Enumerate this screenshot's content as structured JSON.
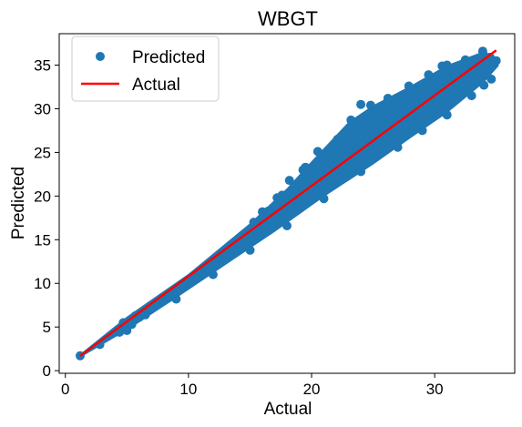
{
  "chart_data": {
    "type": "scatter",
    "title": "WBGT",
    "xlabel": "Actual",
    "ylabel": "Predicted",
    "xlim": [
      -0.5,
      36.5
    ],
    "ylim": [
      -0.3,
      38.6
    ],
    "xticks": [
      0,
      10,
      20,
      30
    ],
    "yticks": [
      0,
      5,
      10,
      15,
      20,
      25,
      30,
      35
    ],
    "grid": false,
    "legend_position": "top-left",
    "series": [
      {
        "name": "Predicted",
        "kind": "scatter",
        "color": "#1f77b4",
        "points": [
          [
            1.2,
            1.7
          ],
          [
            2.8,
            3.0
          ],
          [
            4.4,
            4.4
          ],
          [
            4.6,
            4.9
          ],
          [
            4.7,
            5.5
          ],
          [
            5.0,
            4.6
          ],
          [
            5.4,
            5.3
          ],
          [
            5.7,
            6.3
          ],
          [
            6.0,
            6.1
          ],
          [
            6.5,
            6.4
          ],
          [
            7.0,
            7.1
          ],
          [
            7.5,
            7.9
          ],
          [
            8.0,
            8.3
          ],
          [
            8.5,
            8.6
          ],
          [
            9.0,
            9.3
          ],
          [
            9.5,
            9.7
          ],
          [
            10.0,
            10.4
          ],
          [
            10.5,
            10.7
          ],
          [
            11.0,
            11.3
          ],
          [
            11.5,
            11.7
          ],
          [
            12.0,
            12.2
          ],
          [
            12.5,
            12.8
          ],
          [
            13.0,
            13.5
          ],
          [
            13.5,
            13.9
          ],
          [
            14.0,
            14.6
          ],
          [
            14.5,
            15.0
          ],
          [
            15.0,
            15.5
          ],
          [
            15.5,
            16.1
          ],
          [
            16.0,
            16.5
          ],
          [
            16.5,
            17.2
          ],
          [
            17.0,
            17.6
          ],
          [
            17.5,
            18.3
          ],
          [
            18.0,
            18.8
          ],
          [
            18.5,
            19.4
          ],
          [
            19.0,
            19.9
          ],
          [
            19.5,
            20.5
          ],
          [
            20.0,
            21.0
          ],
          [
            20.5,
            21.6
          ],
          [
            21.0,
            22.2
          ],
          [
            21.5,
            22.8
          ],
          [
            22.0,
            23.3
          ],
          [
            22.5,
            23.9
          ],
          [
            23.0,
            24.5
          ],
          [
            23.5,
            25.1
          ],
          [
            24.0,
            25.6
          ],
          [
            24.5,
            26.2
          ],
          [
            25.0,
            26.8
          ],
          [
            25.5,
            27.4
          ],
          [
            26.0,
            28.0
          ],
          [
            26.5,
            28.5
          ],
          [
            27.0,
            29.1
          ],
          [
            27.5,
            29.7
          ],
          [
            28.0,
            30.2
          ],
          [
            28.5,
            30.8
          ],
          [
            29.0,
            31.4
          ],
          [
            29.5,
            31.9
          ],
          [
            30.0,
            32.5
          ],
          [
            30.5,
            33.0
          ],
          [
            31.0,
            33.5
          ],
          [
            31.5,
            34.0
          ],
          [
            32.0,
            34.4
          ],
          [
            32.5,
            34.9
          ],
          [
            33.0,
            35.3
          ],
          [
            33.5,
            35.7
          ],
          [
            34.0,
            36.1
          ],
          [
            34.5,
            35.9
          ],
          [
            35.0,
            35.5
          ],
          [
            15.3,
            17.0
          ],
          [
            16.0,
            18.2
          ],
          [
            16.5,
            18.3
          ],
          [
            17.2,
            19.8
          ],
          [
            17.6,
            20.1
          ],
          [
            18.2,
            21.8
          ],
          [
            19.3,
            23.0
          ],
          [
            19.5,
            23.3
          ],
          [
            20.5,
            25.1
          ],
          [
            22.1,
            26.5
          ],
          [
            23.2,
            28.7
          ],
          [
            24.0,
            30.5
          ],
          [
            24.8,
            30.4
          ],
          [
            26.2,
            31.2
          ],
          [
            27.9,
            32.6
          ],
          [
            29.5,
            33.9
          ],
          [
            30.6,
            34.9
          ],
          [
            31.0,
            35.0
          ],
          [
            32.5,
            35.6
          ],
          [
            33.9,
            36.6
          ],
          [
            9.0,
            8.2
          ],
          [
            12.0,
            11.0
          ],
          [
            15.0,
            13.8
          ],
          [
            18.0,
            16.6
          ],
          [
            21.0,
            19.7
          ],
          [
            24.0,
            22.8
          ],
          [
            27.0,
            25.6
          ],
          [
            29.0,
            27.5
          ],
          [
            31.0,
            29.3
          ],
          [
            33.0,
            31.5
          ],
          [
            34.0,
            32.7
          ],
          [
            34.6,
            33.4
          ]
        ]
      },
      {
        "name": "Actual",
        "kind": "line",
        "color": "#ff0000",
        "points": [
          [
            1.2,
            1.7
          ],
          [
            35.0,
            36.7
          ]
        ]
      }
    ]
  }
}
